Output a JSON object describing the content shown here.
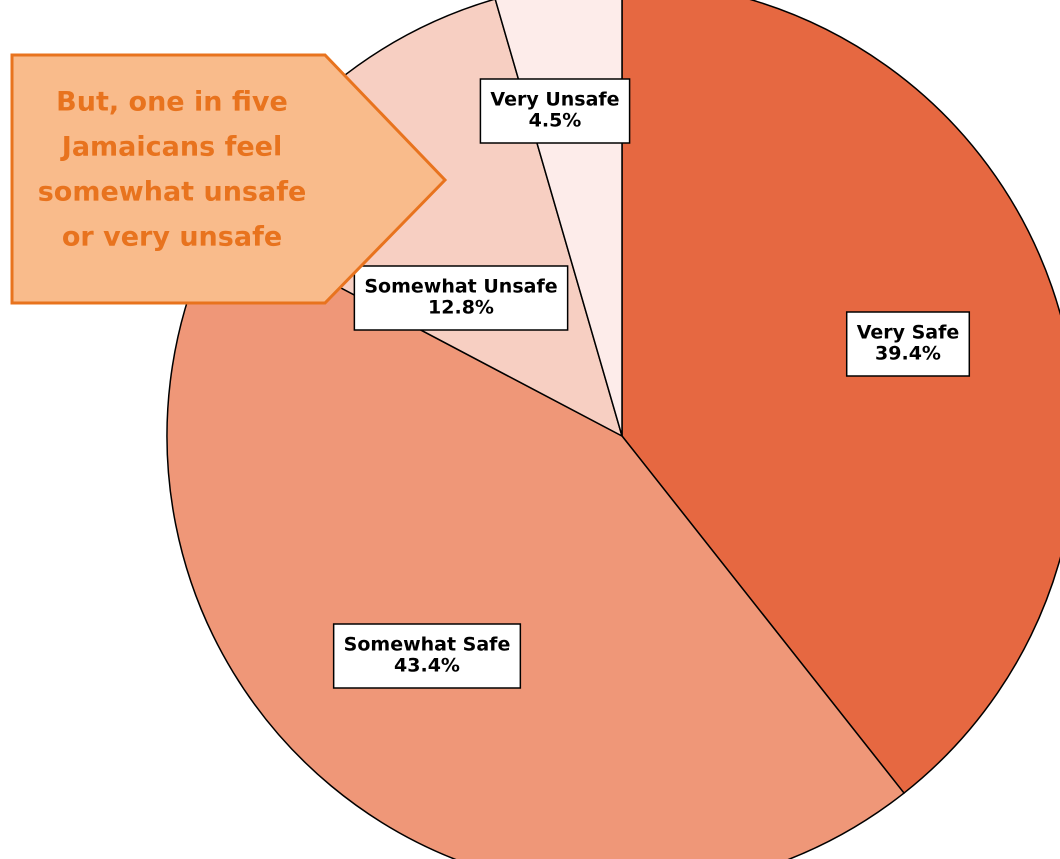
{
  "chart_data": {
    "type": "pie",
    "categories": [
      "Very Safe",
      "Somewhat Safe",
      "Somewhat Unsafe",
      "Very Unsafe"
    ],
    "values": [
      39.4,
      43.4,
      12.8,
      4.5
    ],
    "value_labels": [
      "39.4%",
      "43.4%",
      "12.8%",
      "4.5%"
    ],
    "colors": [
      "#e66841",
      "#ef9778",
      "#f7cfc2",
      "#fdecea"
    ],
    "annotation": [
      "But, one in five",
      "Jamaicans feel",
      "somewhat unsafe",
      "or very unsafe"
    ]
  }
}
